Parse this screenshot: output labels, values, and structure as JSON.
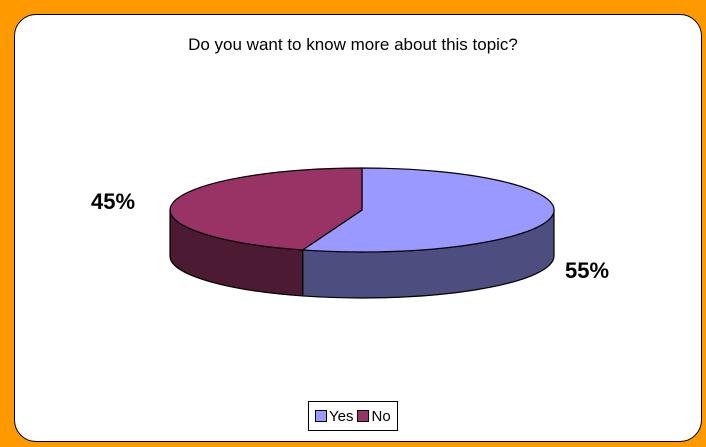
{
  "chart_data": {
    "type": "pie",
    "title": "Do you want to know more about this topic?",
    "categories": [
      "Yes",
      "No"
    ],
    "values": [
      55,
      45
    ],
    "labels": [
      "55%",
      "45%"
    ],
    "colors": {
      "Yes": {
        "top": "#9999FF",
        "side": "#4D4D80"
      },
      "No": {
        "top": "#993366",
        "side": "#4D1A33"
      }
    },
    "legend_position": "bottom",
    "three_d": true
  },
  "legend": {
    "items": [
      {
        "label": "Yes",
        "color": "#9999FF"
      },
      {
        "label": "No",
        "color": "#993366"
      }
    ]
  },
  "frame": {
    "background": "#FF9900",
    "plot_background": "#FFFFFF"
  }
}
